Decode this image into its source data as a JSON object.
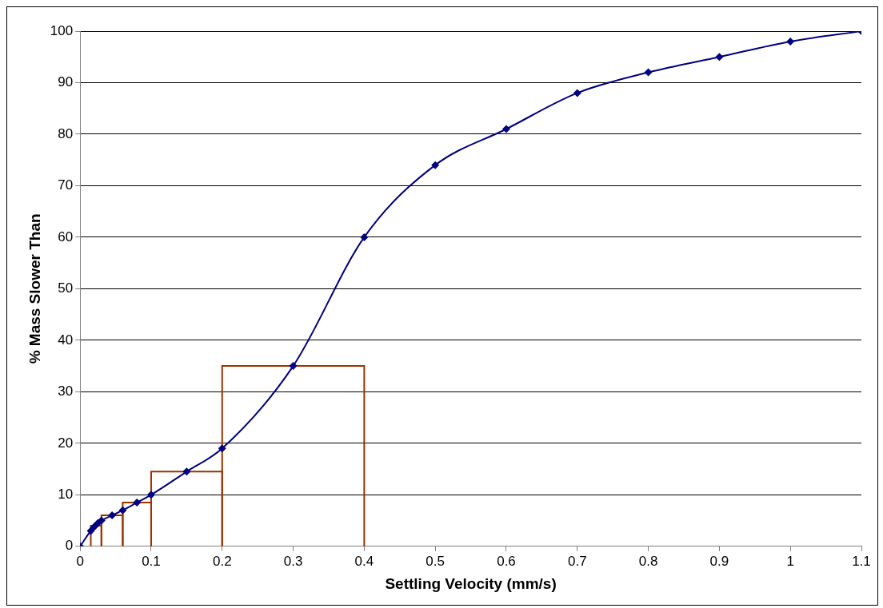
{
  "chart_data": {
    "type": "line",
    "xlabel": "Settling Velocity (mm/s)",
    "ylabel": "% Mass Slower Than",
    "x": [
      0,
      0.015,
      0.02,
      0.025,
      0.03,
      0.045,
      0.06,
      0.08,
      0.1,
      0.15,
      0.2,
      0.3,
      0.4,
      0.5,
      0.6,
      0.7,
      0.8,
      0.9,
      1,
      1.1
    ],
    "series": [
      {
        "color": "#000080",
        "values": [
          0,
          3,
          3.8,
          4.5,
          5,
          6,
          7,
          8.5,
          10,
          14.5,
          19,
          35,
          60,
          74,
          81,
          88,
          92,
          95,
          98,
          100
        ]
      },
      {
        "type": "histogram",
        "color": "#993300",
        "bins": [
          0.015,
          0.03,
          0.06,
          0.1,
          0.2,
          0.4
        ],
        "values": [
          4,
          6,
          8.5,
          14.5,
          35
        ]
      }
    ],
    "xlim": [
      0,
      1.1
    ],
    "xticks": [
      0,
      0.1,
      0.2,
      0.3,
      0.4,
      0.5,
      0.6,
      0.7,
      0.8,
      0.9,
      1,
      1.1
    ],
    "ylim": [
      0,
      100
    ],
    "yticks": [
      0,
      10,
      20,
      30,
      40,
      50,
      60,
      70,
      80,
      90,
      100
    ],
    "grid": "y",
    "legend": false,
    "marker": "diamond",
    "line_style": "solid"
  }
}
